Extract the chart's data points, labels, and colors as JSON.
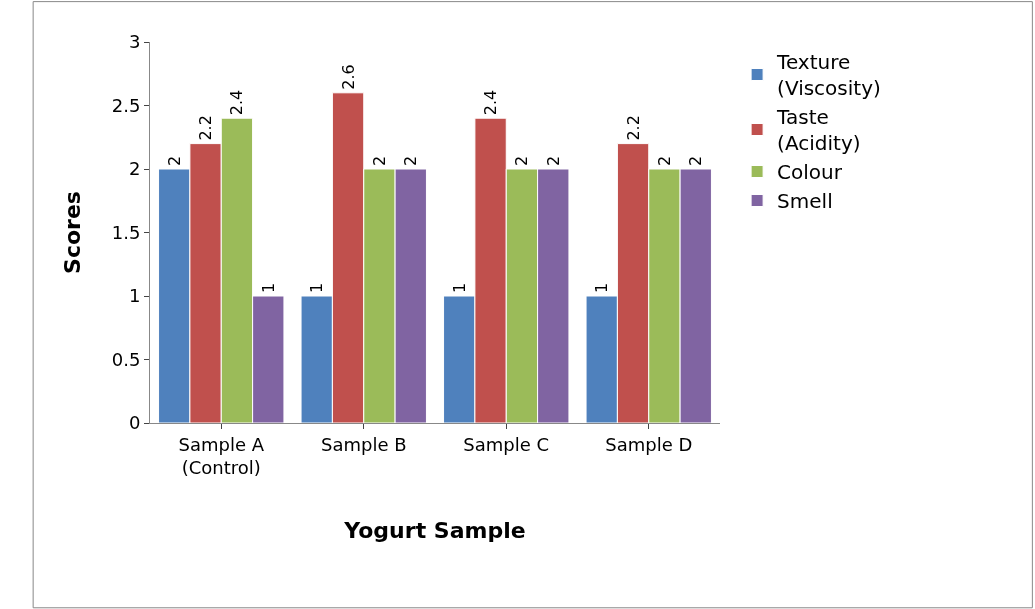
{
  "chart_data": {
    "type": "bar",
    "xlabel": "Yogurt Sample",
    "ylabel": "Scores",
    "categories": [
      "Sample A\n(Control)",
      "Sample B",
      "Sample C",
      "Sample D"
    ],
    "series": [
      {
        "name": "Texture\n(Viscosity)",
        "color": "#4f81bd",
        "values": [
          2,
          1,
          1,
          1
        ]
      },
      {
        "name": "Taste\n(Acidity)",
        "color": "#c0504d",
        "values": [
          2.2,
          2.6,
          2.4,
          2.2
        ]
      },
      {
        "name": "Colour",
        "color": "#9bbb59",
        "values": [
          2.4,
          2,
          2,
          2
        ]
      },
      {
        "name": "Smell",
        "color": "#8064a2",
        "values": [
          1,
          2,
          2,
          2
        ]
      }
    ],
    "ylim": [
      0,
      3
    ],
    "yticks": [
      0,
      0.5,
      1,
      1.5,
      2,
      2.5,
      3
    ],
    "legend": "right",
    "data_labels": true
  }
}
